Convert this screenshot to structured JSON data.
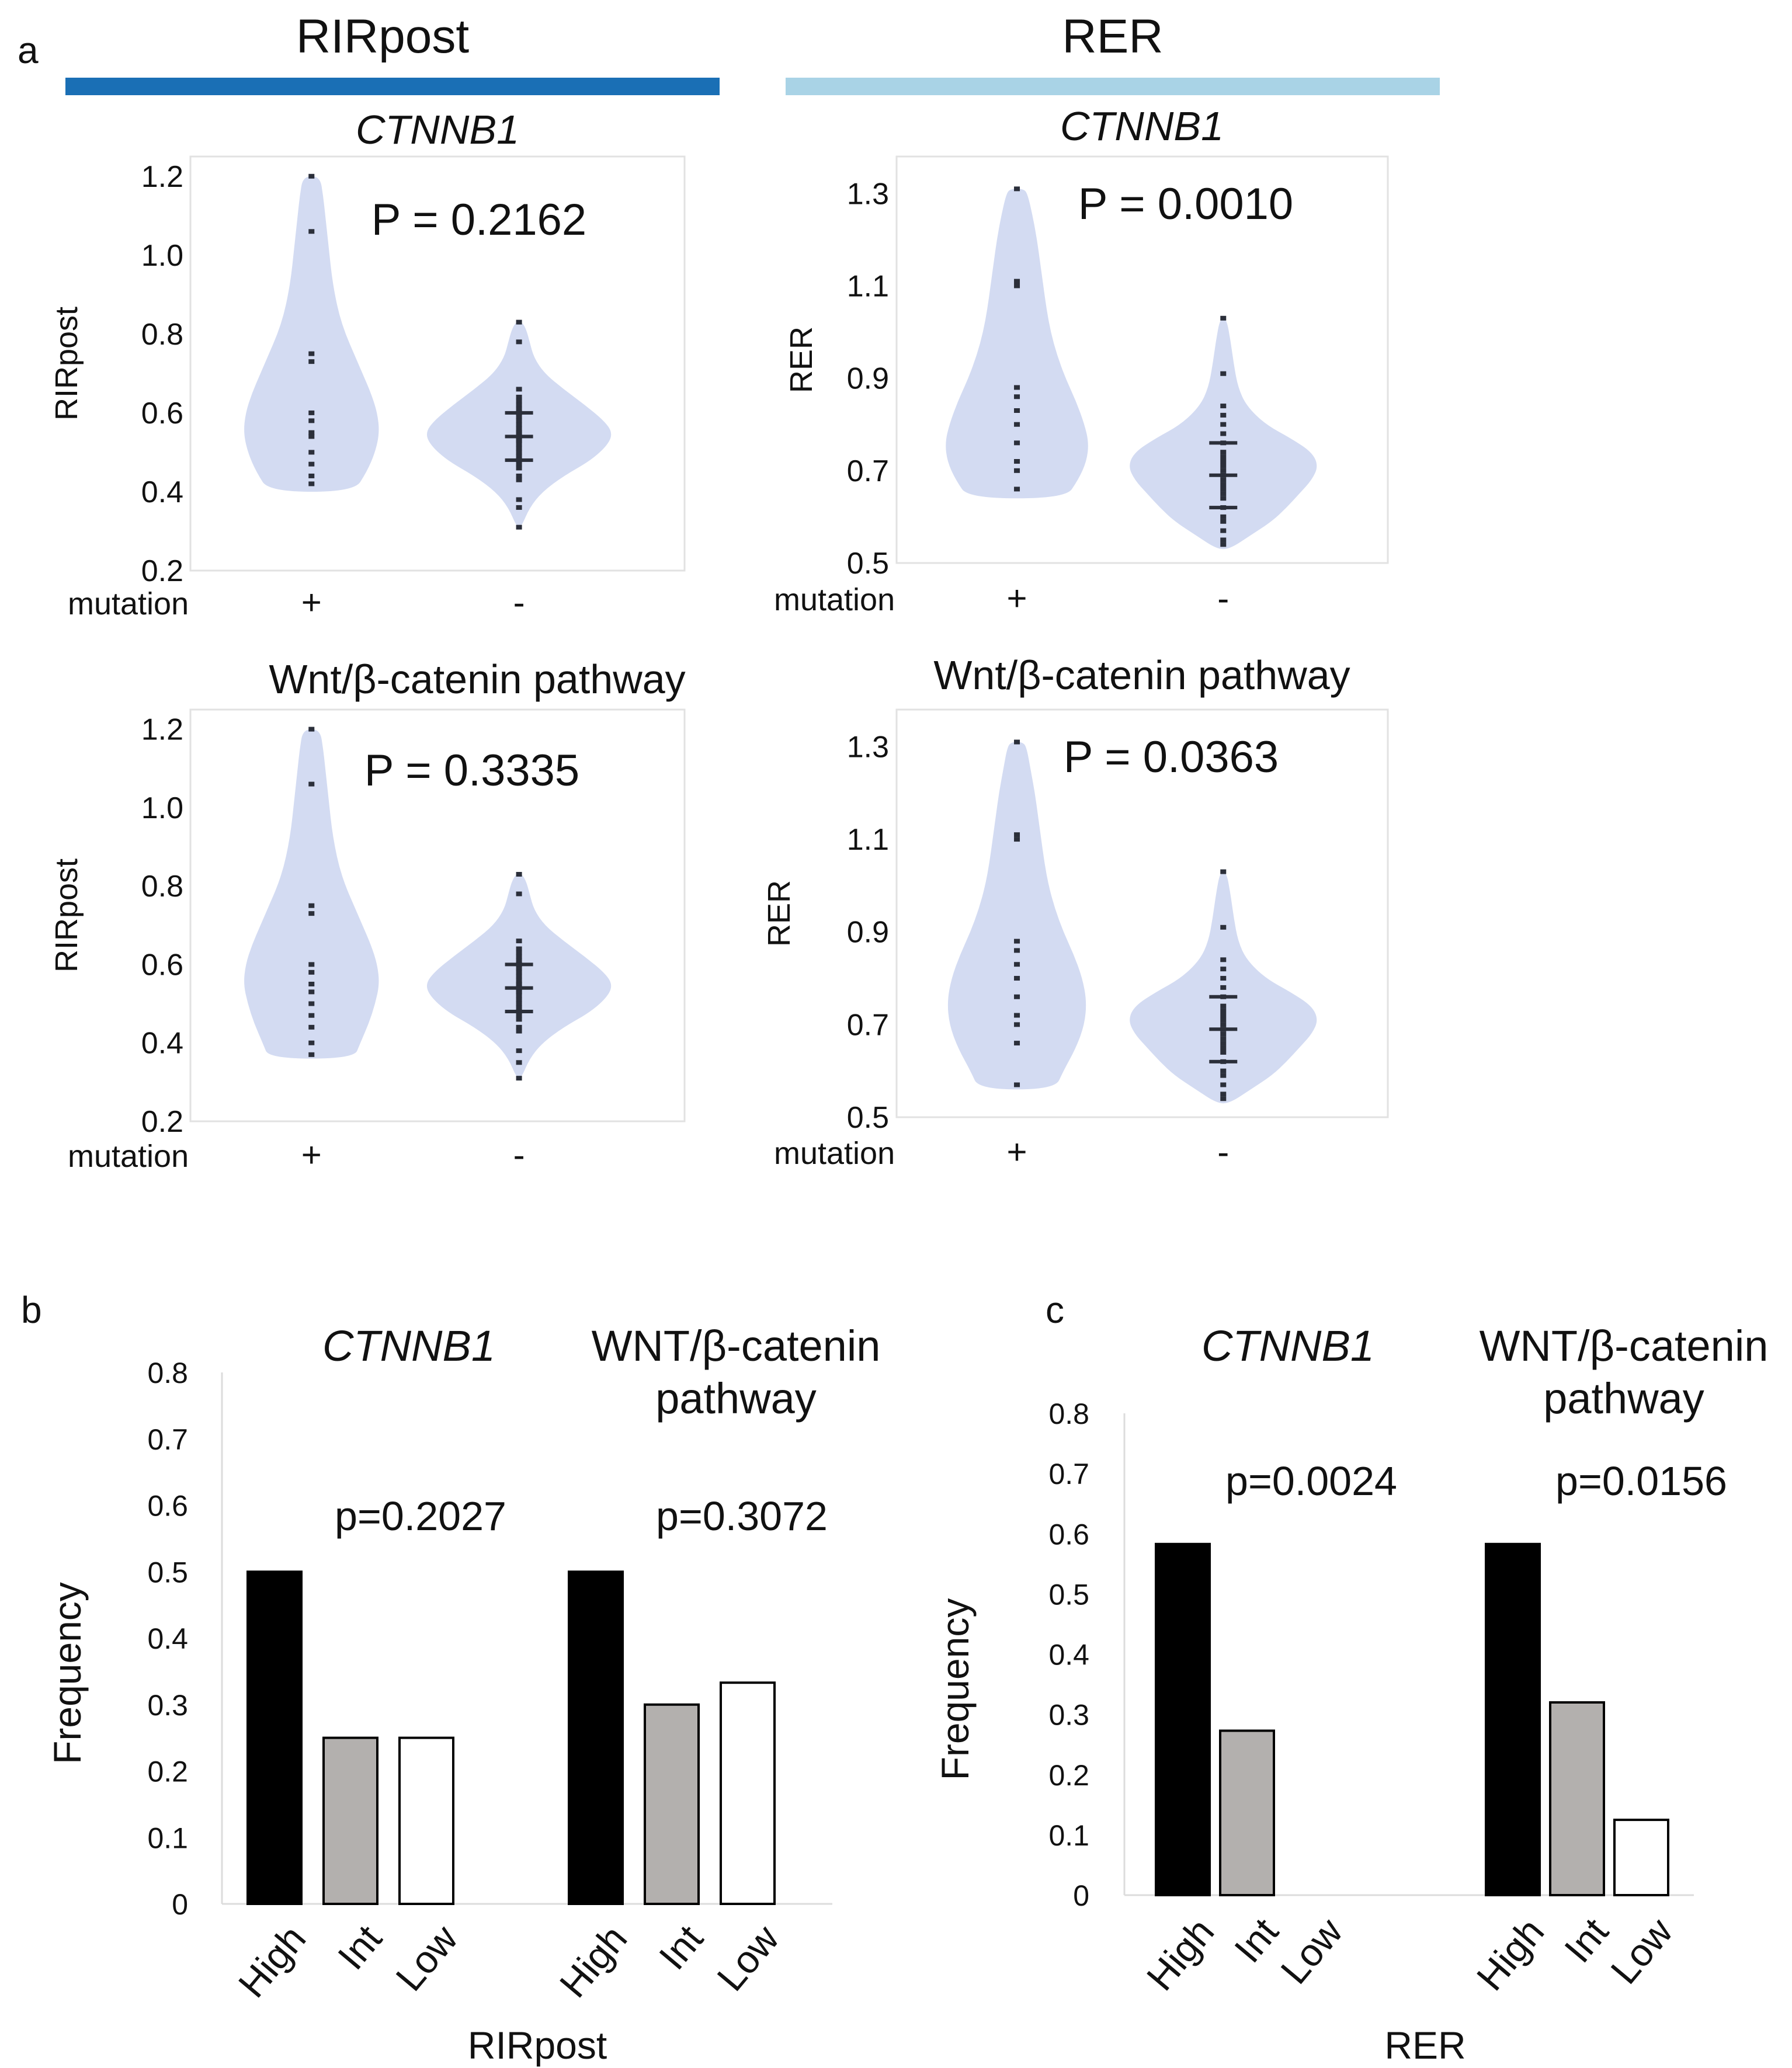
{
  "panel_labels": {
    "a": "a",
    "b": "b",
    "c": "c"
  },
  "headers": {
    "left": "RIRpost",
    "right": "RER"
  },
  "colors": {
    "header_left": "#1a6fb5",
    "header_right": "#a9d3e6",
    "violin": "#d3dbf2",
    "point": "#2b2f3a",
    "bar_high": "#000000",
    "bar_int": "#b3b0ae",
    "bar_low": "#ffffff",
    "axis": "#9a9a9a"
  },
  "chart_data": [
    {
      "id": "violin-rirpost-ctnnb1",
      "type": "violin",
      "title": "CTNNB1",
      "title_italic": true,
      "ylabel": "RIRpost",
      "ylim": [
        0.2,
        1.25
      ],
      "yticks": [
        0.2,
        0.4,
        0.6,
        0.8,
        1.0,
        1.2
      ],
      "tick_labels": [
        "0.2",
        "0.4",
        "0.6",
        "0.8",
        "1.0",
        "1.2"
      ],
      "annotation": "P = 0.2162",
      "group_axis_label": "mutation",
      "groups": [
        {
          "label": "+",
          "values": [
            1.2,
            1.06,
            0.75,
            0.73,
            0.6,
            0.58,
            0.55,
            0.54,
            0.5,
            0.47,
            0.44,
            0.42
          ],
          "profile": [
            [
              0.4,
              0.4
            ],
            [
              0.45,
              0.52
            ],
            [
              0.5,
              0.6
            ],
            [
              0.55,
              0.64
            ],
            [
              0.6,
              0.62
            ],
            [
              0.65,
              0.56
            ],
            [
              0.7,
              0.48
            ],
            [
              0.75,
              0.4
            ],
            [
              0.8,
              0.32
            ],
            [
              0.85,
              0.26
            ],
            [
              0.9,
              0.22
            ],
            [
              0.95,
              0.19
            ],
            [
              1.0,
              0.17
            ],
            [
              1.05,
              0.15
            ],
            [
              1.1,
              0.13
            ],
            [
              1.15,
              0.11
            ],
            [
              1.2,
              0.08
            ]
          ]
        },
        {
          "label": "-",
          "values": [
            0.83,
            0.78,
            0.66,
            0.64,
            0.63,
            0.62,
            0.61,
            0.6,
            0.6,
            0.59,
            0.58,
            0.57,
            0.56,
            0.55,
            0.55,
            0.54,
            0.53,
            0.53,
            0.52,
            0.51,
            0.5,
            0.49,
            0.48,
            0.47,
            0.46,
            0.44,
            0.43,
            0.38,
            0.36,
            0.31
          ],
          "profile": [
            [
              0.31,
              0.02
            ],
            [
              0.36,
              0.1
            ],
            [
              0.4,
              0.22
            ],
            [
              0.44,
              0.42
            ],
            [
              0.48,
              0.68
            ],
            [
              0.52,
              0.84
            ],
            [
              0.55,
              0.88
            ],
            [
              0.58,
              0.8
            ],
            [
              0.62,
              0.62
            ],
            [
              0.66,
              0.42
            ],
            [
              0.7,
              0.24
            ],
            [
              0.74,
              0.14
            ],
            [
              0.78,
              0.1
            ],
            [
              0.81,
              0.07
            ],
            [
              0.83,
              0.03
            ]
          ]
        }
      ]
    },
    {
      "id": "violin-rer-ctnnb1",
      "type": "violin",
      "title": "CTNNB1",
      "title_italic": true,
      "ylabel": "RER",
      "ylim": [
        0.5,
        1.38
      ],
      "yticks": [
        0.5,
        0.7,
        0.9,
        1.1,
        1.3
      ],
      "tick_labels": [
        "0.5",
        "0.7",
        "0.9",
        "1.1",
        "1.3"
      ],
      "annotation": "P = 0.0010",
      "group_axis_label": "mutation",
      "groups": [
        {
          "label": "+",
          "values": [
            1.31,
            1.11,
            1.1,
            0.88,
            0.86,
            0.83,
            0.8,
            0.76,
            0.72,
            0.7,
            0.66
          ],
          "profile": [
            [
              0.64,
              0.46
            ],
            [
              0.68,
              0.58
            ],
            [
              0.72,
              0.66
            ],
            [
              0.76,
              0.68
            ],
            [
              0.8,
              0.64
            ],
            [
              0.85,
              0.56
            ],
            [
              0.9,
              0.46
            ],
            [
              0.95,
              0.38
            ],
            [
              1.0,
              0.32
            ],
            [
              1.05,
              0.28
            ],
            [
              1.1,
              0.25
            ],
            [
              1.15,
              0.22
            ],
            [
              1.2,
              0.19
            ],
            [
              1.25,
              0.15
            ],
            [
              1.3,
              0.1
            ],
            [
              1.31,
              0.06
            ]
          ]
        },
        {
          "label": "-",
          "values": [
            1.03,
            0.91,
            0.84,
            0.82,
            0.8,
            0.78,
            0.76,
            0.74,
            0.73,
            0.72,
            0.71,
            0.7,
            0.69,
            0.68,
            0.67,
            0.66,
            0.65,
            0.64,
            0.62,
            0.6,
            0.59,
            0.57,
            0.55,
            0.54
          ],
          "profile": [
            [
              0.53,
              0.06
            ],
            [
              0.56,
              0.26
            ],
            [
              0.59,
              0.46
            ],
            [
              0.62,
              0.6
            ],
            [
              0.65,
              0.72
            ],
            [
              0.68,
              0.84
            ],
            [
              0.71,
              0.9
            ],
            [
              0.74,
              0.84
            ],
            [
              0.77,
              0.64
            ],
            [
              0.8,
              0.4
            ],
            [
              0.84,
              0.22
            ],
            [
              0.88,
              0.14
            ],
            [
              0.93,
              0.1
            ],
            [
              0.98,
              0.07
            ],
            [
              1.03,
              0.03
            ]
          ]
        }
      ]
    },
    {
      "id": "violin-rirpost-wnt",
      "type": "violin",
      "title": "Wnt/β-catenin pathway",
      "title_italic": false,
      "ylabel": "RIRpost",
      "ylim": [
        0.2,
        1.25
      ],
      "yticks": [
        0.2,
        0.4,
        0.6,
        0.8,
        1.0,
        1.2
      ],
      "tick_labels": [
        "0.2",
        "0.4",
        "0.6",
        "0.8",
        "1.0",
        "1.2"
      ],
      "annotation": "P = 0.3335",
      "group_axis_label": "mutation",
      "groups": [
        {
          "label": "+",
          "values": [
            1.2,
            1.06,
            0.75,
            0.73,
            0.6,
            0.58,
            0.55,
            0.53,
            0.5,
            0.47,
            0.44,
            0.4,
            0.37
          ],
          "profile": [
            [
              0.36,
              0.4
            ],
            [
              0.4,
              0.46
            ],
            [
              0.45,
              0.54
            ],
            [
              0.5,
              0.6
            ],
            [
              0.55,
              0.64
            ],
            [
              0.6,
              0.62
            ],
            [
              0.65,
              0.56
            ],
            [
              0.7,
              0.48
            ],
            [
              0.75,
              0.4
            ],
            [
              0.8,
              0.32
            ],
            [
              0.85,
              0.26
            ],
            [
              0.9,
              0.22
            ],
            [
              0.95,
              0.19
            ],
            [
              1.0,
              0.17
            ],
            [
              1.05,
              0.15
            ],
            [
              1.1,
              0.13
            ],
            [
              1.15,
              0.11
            ],
            [
              1.2,
              0.08
            ]
          ]
        },
        {
          "label": "-",
          "values": [
            0.83,
            0.78,
            0.66,
            0.64,
            0.63,
            0.62,
            0.61,
            0.6,
            0.6,
            0.59,
            0.58,
            0.57,
            0.56,
            0.55,
            0.55,
            0.54,
            0.53,
            0.53,
            0.52,
            0.51,
            0.5,
            0.49,
            0.48,
            0.47,
            0.46,
            0.44,
            0.43,
            0.38,
            0.35,
            0.31
          ],
          "profile": [
            [
              0.31,
              0.02
            ],
            [
              0.36,
              0.1
            ],
            [
              0.4,
              0.22
            ],
            [
              0.44,
              0.42
            ],
            [
              0.48,
              0.68
            ],
            [
              0.52,
              0.84
            ],
            [
              0.55,
              0.88
            ],
            [
              0.58,
              0.8
            ],
            [
              0.62,
              0.62
            ],
            [
              0.66,
              0.42
            ],
            [
              0.7,
              0.24
            ],
            [
              0.74,
              0.14
            ],
            [
              0.78,
              0.1
            ],
            [
              0.81,
              0.07
            ],
            [
              0.83,
              0.03
            ]
          ]
        }
      ]
    },
    {
      "id": "violin-rer-wnt",
      "type": "violin",
      "title": "Wnt/β-catenin pathway",
      "title_italic": false,
      "ylabel": "RER",
      "ylim": [
        0.5,
        1.38
      ],
      "yticks": [
        0.5,
        0.7,
        0.9,
        1.1,
        1.3
      ],
      "tick_labels": [
        "0.5",
        "0.7",
        "0.9",
        "1.1",
        "1.3"
      ],
      "annotation": "P = 0.0363",
      "group_axis_label": "mutation",
      "groups": [
        {
          "label": "+",
          "values": [
            1.31,
            1.11,
            1.1,
            0.88,
            0.86,
            0.83,
            0.8,
            0.76,
            0.72,
            0.7,
            0.66,
            0.57
          ],
          "profile": [
            [
              0.56,
              0.36
            ],
            [
              0.6,
              0.44
            ],
            [
              0.65,
              0.56
            ],
            [
              0.7,
              0.64
            ],
            [
              0.75,
              0.66
            ],
            [
              0.8,
              0.62
            ],
            [
              0.85,
              0.54
            ],
            [
              0.9,
              0.44
            ],
            [
              0.95,
              0.36
            ],
            [
              1.0,
              0.3
            ],
            [
              1.05,
              0.26
            ],
            [
              1.1,
              0.23
            ],
            [
              1.15,
              0.2
            ],
            [
              1.2,
              0.17
            ],
            [
              1.25,
              0.13
            ],
            [
              1.3,
              0.09
            ],
            [
              1.31,
              0.05
            ]
          ]
        },
        {
          "label": "-",
          "values": [
            1.03,
            0.91,
            0.84,
            0.82,
            0.8,
            0.78,
            0.76,
            0.74,
            0.73,
            0.72,
            0.71,
            0.7,
            0.69,
            0.68,
            0.67,
            0.66,
            0.65,
            0.64,
            0.62,
            0.6,
            0.59,
            0.57,
            0.55,
            0.54
          ],
          "profile": [
            [
              0.53,
              0.06
            ],
            [
              0.56,
              0.26
            ],
            [
              0.59,
              0.46
            ],
            [
              0.62,
              0.6
            ],
            [
              0.65,
              0.72
            ],
            [
              0.68,
              0.84
            ],
            [
              0.71,
              0.9
            ],
            [
              0.74,
              0.84
            ],
            [
              0.77,
              0.64
            ],
            [
              0.8,
              0.4
            ],
            [
              0.84,
              0.22
            ],
            [
              0.88,
              0.14
            ],
            [
              0.93,
              0.1
            ],
            [
              0.98,
              0.07
            ],
            [
              1.03,
              0.03
            ]
          ]
        }
      ]
    },
    {
      "id": "bars-rirpost",
      "type": "bar",
      "ylabel": "Frequency",
      "xlabel": "RIRpost",
      "ylim": [
        0,
        0.8
      ],
      "yticks": [
        0,
        0.1,
        0.2,
        0.3,
        0.4,
        0.5,
        0.6,
        0.7,
        0.8
      ],
      "tick_labels": [
        "0",
        "0.1",
        "0.2",
        "0.3",
        "0.4",
        "0.5",
        "0.6",
        "0.7",
        "0.8"
      ],
      "categories": [
        "High",
        "Int",
        "Low"
      ],
      "groups": [
        {
          "title": "CTNNB1",
          "title_italic": true,
          "p_value": "p=0.2027",
          "values": [
            0.5,
            0.25,
            0.25
          ]
        },
        {
          "title_lines": [
            "WNT/β-catenin",
            "pathway"
          ],
          "title_italic": false,
          "p_value": "p=0.3072",
          "values": [
            0.5,
            0.3,
            0.333
          ]
        }
      ]
    },
    {
      "id": "bars-rer",
      "type": "bar",
      "ylabel": "Frequency",
      "xlabel": "RER",
      "ylim": [
        0,
        0.8
      ],
      "yticks": [
        0,
        0.1,
        0.2,
        0.3,
        0.4,
        0.5,
        0.6,
        0.7,
        0.8
      ],
      "tick_labels": [
        "0",
        "0.1",
        "0.2",
        "0.3",
        "0.4",
        "0.5",
        "0.6",
        "0.7",
        "0.8"
      ],
      "categories": [
        "High",
        "Int",
        "Low"
      ],
      "groups": [
        {
          "title": "CTNNB1",
          "title_italic": true,
          "p_value": "p=0.0024",
          "values": [
            0.583,
            0.273,
            0
          ]
        },
        {
          "title_lines": [
            "WNT/β-catenin",
            "pathway"
          ],
          "title_italic": false,
          "p_value": "p=0.0156",
          "values": [
            0.583,
            0.32,
            0.125
          ]
        }
      ]
    }
  ]
}
